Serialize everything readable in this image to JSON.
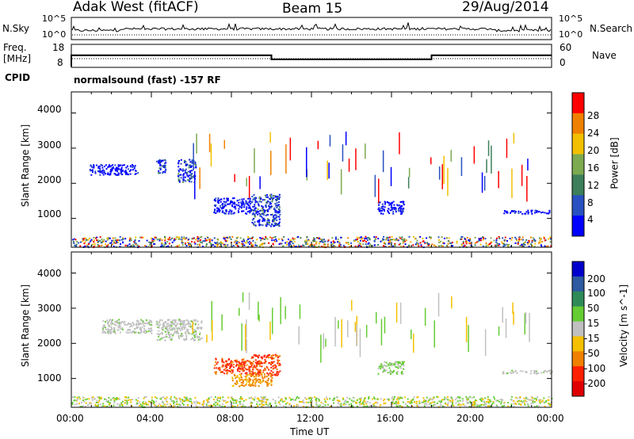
{
  "header": {
    "station": "Adak West (fitACF)",
    "beam": "Beam 15",
    "date": "29/Aug/2014"
  },
  "noise_panel": {
    "left_label": "N.Sky",
    "right_label": "N.Search",
    "left_ticks": [
      "10^5",
      "10^0"
    ],
    "right_ticks": [
      "10^5",
      "10^0"
    ]
  },
  "freq_panel": {
    "left_label_line1": "Freq.",
    "left_label_line2": "[MHz]",
    "right_label": "Nave",
    "left_ticks": [
      "18",
      "8"
    ],
    "right_ticks": [
      "60",
      "0"
    ],
    "frequency_steps": [
      {
        "from_hour": 0,
        "to_hour": 10,
        "freq_mhz": 13.5
      },
      {
        "from_hour": 10,
        "to_hour": 18,
        "freq_mhz": 11.5
      },
      {
        "from_hour": 18,
        "to_hour": 24,
        "freq_mhz": 13.5
      }
    ]
  },
  "cpid": {
    "label": "CPID",
    "program": "normalsound (fast) -157 RF"
  },
  "chart_data": [
    {
      "type": "heatmap",
      "panel": "power",
      "ylabel": "Slant Range [km]",
      "xlabel": "",
      "x_ticks": [
        "00:00",
        "04:00",
        "08:00",
        "12:00",
        "16:00",
        "20:00",
        "00:00"
      ],
      "y_ticks": [
        "1000",
        "2000",
        "3000",
        "4000"
      ],
      "xlim_hours": [
        0,
        24
      ],
      "ylim_km": [
        180,
        4600
      ],
      "colorbar_label": "Power [dB]",
      "colorbar_ticks": [
        "4",
        "8",
        "12",
        "16",
        "20",
        "24",
        "28"
      ],
      "colorbar_colors": [
        "#0000ff",
        "#2850c0",
        "#3c7f5a",
        "#7caa50",
        "#f2c000",
        "#f08000",
        "#ff0000"
      ],
      "scatter_regions": [
        {
          "hours": [
            0.9,
            3.3
          ],
          "range_km": [
            2250,
            2550
          ],
          "level": "low"
        },
        {
          "hours": [
            4.2,
            4.7
          ],
          "range_km": [
            2300,
            2700
          ],
          "level": "mid"
        },
        {
          "hours": [
            5.3,
            6.2
          ],
          "range_km": [
            2050,
            2700
          ],
          "level": "mid"
        },
        {
          "hours": [
            7.1,
            9.0
          ],
          "range_km": [
            1150,
            1600
          ],
          "level": "low"
        },
        {
          "hours": [
            9.0,
            10.4
          ],
          "range_km": [
            800,
            1700
          ],
          "level": "mid"
        },
        {
          "hours": [
            15.3,
            16.6
          ],
          "range_km": [
            1150,
            1500
          ],
          "level": "low"
        },
        {
          "hours": [
            21.5,
            24.0
          ],
          "range_km": [
            1150,
            1250
          ],
          "level": "low"
        },
        {
          "hours": [
            0.0,
            24.0
          ],
          "range_km": [
            200,
            500
          ],
          "level": "mixed"
        }
      ]
    },
    {
      "type": "heatmap",
      "panel": "velocity",
      "ylabel": "Slant Range [km]",
      "xlabel": "Time UT",
      "x_ticks": [
        "00:00",
        "04:00",
        "08:00",
        "12:00",
        "16:00",
        "20:00",
        "00:00"
      ],
      "y_ticks": [
        "1000",
        "2000",
        "3000",
        "4000"
      ],
      "xlim_hours": [
        0,
        24
      ],
      "ylim_km": [
        180,
        4600
      ],
      "colorbar_label": "Velocity [m s^-1]",
      "colorbar_ticks": [
        "200",
        "100",
        "50",
        "15",
        "-15",
        "-50",
        "-100",
        "-200"
      ],
      "colorbar_colors": [
        "#0000cc",
        "#2d5aa0",
        "#2e8b57",
        "#66cc33",
        "#c0c0c0",
        "#f5c000",
        "#f08000",
        "#ff2000",
        "#e00000"
      ],
      "scatter_regions": [
        {
          "hours": [
            1.5,
            4.0
          ],
          "range_km": [
            2300,
            2700
          ],
          "level": "grey"
        },
        {
          "hours": [
            4.2,
            6.5
          ],
          "range_km": [
            2100,
            2700
          ],
          "level": "grey"
        },
        {
          "hours": [
            7.1,
            9.0
          ],
          "range_km": [
            1150,
            1600
          ],
          "level": "red"
        },
        {
          "hours": [
            8.0,
            10.0
          ],
          "range_km": [
            800,
            1150
          ],
          "level": "orange"
        },
        {
          "hours": [
            9.0,
            10.4
          ],
          "range_km": [
            1100,
            1700
          ],
          "level": "red"
        },
        {
          "hours": [
            15.3,
            16.6
          ],
          "range_km": [
            1150,
            1500
          ],
          "level": "green"
        },
        {
          "hours": [
            21.5,
            24.0
          ],
          "range_km": [
            1150,
            1250
          ],
          "level": "grey"
        },
        {
          "hours": [
            0.0,
            24.0
          ],
          "range_km": [
            200,
            500
          ],
          "level": "ground"
        }
      ]
    }
  ]
}
